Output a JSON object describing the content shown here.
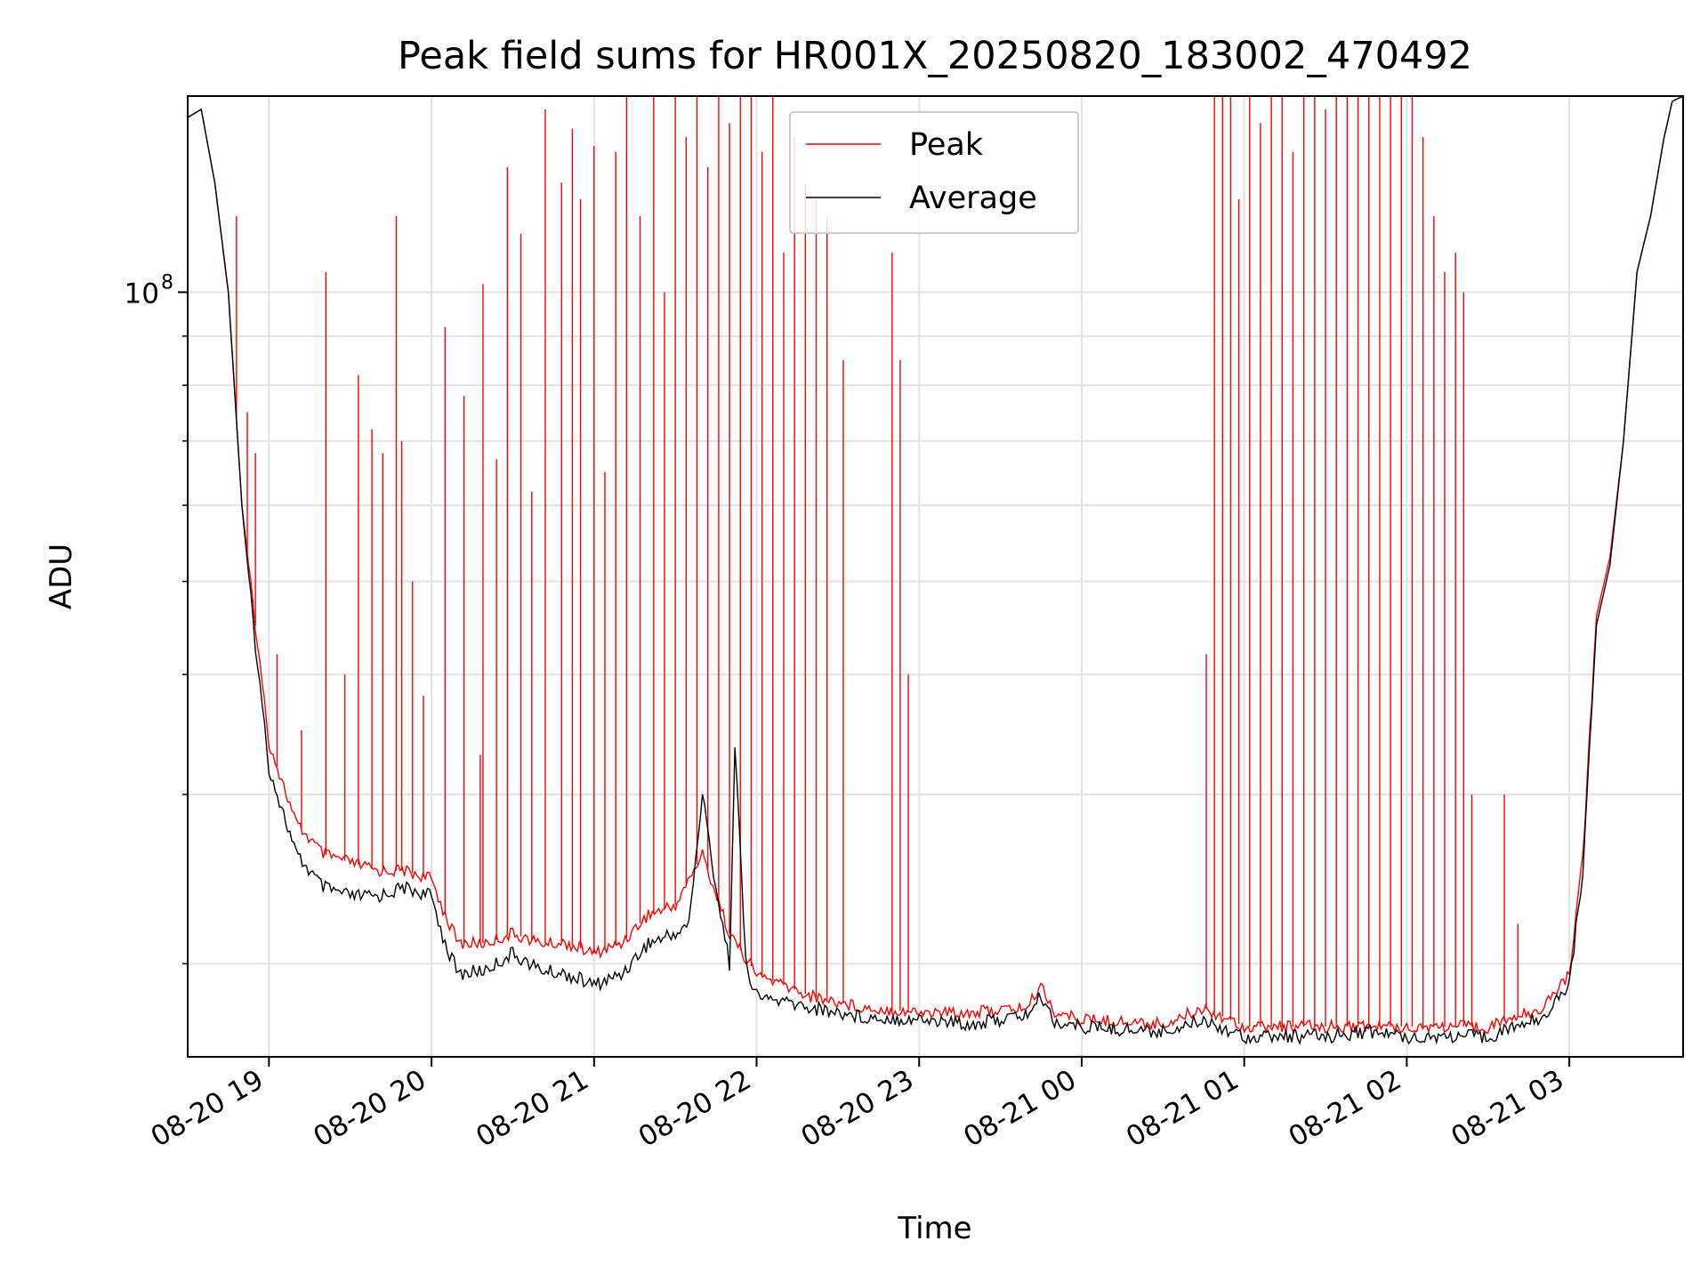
{
  "chart_data": {
    "type": "line",
    "title": "Peak field sums for HR001X_20250820_183002_470492",
    "xlabel": "Time",
    "ylabel": "ADU",
    "yscale": "log",
    "grid": true,
    "legend_position": "top-center",
    "xlim": [
      "2025-08-20T18:30",
      "2025-08-21T03:42"
    ],
    "ylim": [
      16000000,
      160000000
    ],
    "x_ticks": [
      {
        "t": "2025-08-20T19:00",
        "label": "08-20 19"
      },
      {
        "t": "2025-08-20T20:00",
        "label": "08-20 20"
      },
      {
        "t": "2025-08-20T21:00",
        "label": "08-20 21"
      },
      {
        "t": "2025-08-20T22:00",
        "label": "08-20 22"
      },
      {
        "t": "2025-08-20T23:00",
        "label": "08-20 23"
      },
      {
        "t": "2025-08-21T00:00",
        "label": "08-21 00"
      },
      {
        "t": "2025-08-21T01:00",
        "label": "08-21 01"
      },
      {
        "t": "2025-08-21T02:00",
        "label": "08-21 02"
      },
      {
        "t": "2025-08-21T03:00",
        "label": "08-21 03"
      }
    ],
    "y_major_ticks": [
      {
        "value": 100000000,
        "label_base": "10",
        "label_exp": "8"
      }
    ],
    "y_minor_ticks": [
      20000000,
      30000000,
      40000000,
      50000000,
      60000000,
      70000000,
      80000000,
      90000000
    ],
    "series": [
      {
        "name": "Peak",
        "color": "#ff0000",
        "baseline": [
          [
            "2025-08-20T18:30",
            152000000.0
          ],
          [
            "2025-08-20T18:35",
            155000000.0
          ],
          [
            "2025-08-20T18:40",
            130000000.0
          ],
          [
            "2025-08-20T18:45",
            100000000.0
          ],
          [
            "2025-08-20T18:50",
            60000000.0
          ],
          [
            "2025-08-20T18:55",
            45000000.0
          ],
          [
            "2025-08-20T19:00",
            34000000.0
          ],
          [
            "2025-08-20T19:10",
            28000000.0
          ],
          [
            "2025-08-20T19:20",
            26000000.0
          ],
          [
            "2025-08-20T19:30",
            25500000.0
          ],
          [
            "2025-08-20T19:40",
            25000000.0
          ],
          [
            "2025-08-20T19:50",
            25000000.0
          ],
          [
            "2025-08-20T20:00",
            24500000.0
          ],
          [
            "2025-08-20T20:05",
            22500000.0
          ],
          [
            "2025-08-20T20:10",
            21000000.0
          ],
          [
            "2025-08-20T20:20",
            21000000.0
          ],
          [
            "2025-08-20T20:30",
            21500000.0
          ],
          [
            "2025-08-20T20:40",
            21000000.0
          ],
          [
            "2025-08-20T20:50",
            21000000.0
          ],
          [
            "2025-08-20T21:00",
            20500000.0
          ],
          [
            "2025-08-20T21:10",
            21000000.0
          ],
          [
            "2025-08-20T21:20",
            22500000.0
          ],
          [
            "2025-08-20T21:30",
            23000000.0
          ],
          [
            "2025-08-20T21:40",
            26000000.0
          ],
          [
            "2025-08-20T21:50",
            21500000.0
          ],
          [
            "2025-08-20T22:00",
            19500000.0
          ],
          [
            "2025-08-20T22:20",
            18500000.0
          ],
          [
            "2025-08-20T22:40",
            18000000.0
          ],
          [
            "2025-08-20T23:00",
            17800000.0
          ],
          [
            "2025-08-20T23:20",
            17800000.0
          ],
          [
            "2025-08-20T23:40",
            18000000.0
          ],
          [
            "2025-08-20T23:45",
            19000000.0
          ],
          [
            "2025-08-20T23:50",
            17800000.0
          ],
          [
            "2025-08-21T00:00",
            17500000.0
          ],
          [
            "2025-08-21T00:30",
            17300000.0
          ],
          [
            "2025-08-21T00:45",
            18000000.0
          ],
          [
            "2025-08-21T01:00",
            17200000.0
          ],
          [
            "2025-08-21T01:30",
            17200000.0
          ],
          [
            "2025-08-21T02:00",
            17200000.0
          ],
          [
            "2025-08-21T02:30",
            17200000.0
          ],
          [
            "2025-08-21T02:50",
            18000000.0
          ],
          [
            "2025-08-21T03:00",
            19500000.0
          ],
          [
            "2025-08-21T03:05",
            26000000.0
          ],
          [
            "2025-08-21T03:10",
            46000000.0
          ],
          [
            "2025-08-21T03:15",
            53000000.0
          ],
          [
            "2025-08-21T03:20",
            70000000.0
          ],
          [
            "2025-08-21T03:25",
            105000000.0
          ],
          [
            "2025-08-21T03:30",
            120000000.0
          ],
          [
            "2025-08-21T03:35",
            145000000.0
          ],
          [
            "2025-08-21T03:38",
            158000000.0
          ],
          [
            "2025-08-21T03:42",
            160000000.0
          ]
        ],
        "spikes": [
          [
            "2025-08-20T18:48",
            120000000.0
          ],
          [
            "2025-08-20T18:52",
            75000000.0
          ],
          [
            "2025-08-20T18:55",
            68000000.0
          ],
          [
            "2025-08-20T19:03",
            42000000.0
          ],
          [
            "2025-08-20T19:12",
            35000000.0
          ],
          [
            "2025-08-20T19:21",
            105000000.0
          ],
          [
            "2025-08-20T19:28",
            40000000.0
          ],
          [
            "2025-08-20T19:33",
            82000000.0
          ],
          [
            "2025-08-20T19:38",
            72000000.0
          ],
          [
            "2025-08-20T19:42",
            68000000.0
          ],
          [
            "2025-08-20T19:47",
            120000000.0
          ],
          [
            "2025-08-20T19:49",
            70000000.0
          ],
          [
            "2025-08-20T19:53",
            50000000.0
          ],
          [
            "2025-08-20T19:57",
            38000000.0
          ],
          [
            "2025-08-20T20:05",
            92000000.0
          ],
          [
            "2025-08-20T20:12",
            78000000.0
          ],
          [
            "2025-08-20T20:18",
            33000000.0
          ],
          [
            "2025-08-20T20:19",
            102000000.0
          ],
          [
            "2025-08-20T20:24",
            67000000.0
          ],
          [
            "2025-08-20T20:28",
            135000000.0
          ],
          [
            "2025-08-20T20:33",
            115000000.0
          ],
          [
            "2025-08-20T20:37",
            62000000.0
          ],
          [
            "2025-08-20T20:42",
            155000000.0
          ],
          [
            "2025-08-20T20:48",
            130000000.0
          ],
          [
            "2025-08-20T20:52",
            148000000.0
          ],
          [
            "2025-08-20T20:55",
            125000000.0
          ],
          [
            "2025-08-20T21:00",
            142000000.0
          ],
          [
            "2025-08-20T21:04",
            65000000.0
          ],
          [
            "2025-08-20T21:08",
            140000000.0
          ],
          [
            "2025-08-20T21:12",
            162000000.0
          ],
          [
            "2025-08-20T21:17",
            120000000.0
          ],
          [
            "2025-08-20T21:22",
            162000000.0
          ],
          [
            "2025-08-20T21:26",
            100000000.0
          ],
          [
            "2025-08-20T21:30",
            162000000.0
          ],
          [
            "2025-08-20T21:34",
            145000000.0
          ],
          [
            "2025-08-20T21:38",
            162000000.0
          ],
          [
            "2025-08-20T21:42",
            135000000.0
          ],
          [
            "2025-08-20T21:46",
            162000000.0
          ],
          [
            "2025-08-20T21:50",
            150000000.0
          ],
          [
            "2025-08-20T21:54",
            162000000.0
          ],
          [
            "2025-08-20T21:58",
            162000000.0
          ],
          [
            "2025-08-20T22:02",
            140000000.0
          ],
          [
            "2025-08-20T22:06",
            162000000.0
          ],
          [
            "2025-08-20T22:10",
            110000000.0
          ],
          [
            "2025-08-20T22:14",
            145000000.0
          ],
          [
            "2025-08-20T22:18",
            130000000.0
          ],
          [
            "2025-08-20T22:22",
            125000000.0
          ],
          [
            "2025-08-20T22:26",
            120000000.0
          ],
          [
            "2025-08-20T22:32",
            85000000.0
          ],
          [
            "2025-08-20T22:50",
            110000000.0
          ],
          [
            "2025-08-20T22:53",
            85000000.0
          ],
          [
            "2025-08-20T22:56",
            40000000.0
          ],
          [
            "2025-08-21T00:46",
            42000000.0
          ],
          [
            "2025-08-21T00:49",
            162000000.0
          ],
          [
            "2025-08-21T00:52",
            162000000.0
          ],
          [
            "2025-08-21T00:55",
            162000000.0
          ],
          [
            "2025-08-21T00:58",
            125000000.0
          ],
          [
            "2025-08-21T01:02",
            162000000.0
          ],
          [
            "2025-08-21T01:06",
            150000000.0
          ],
          [
            "2025-08-21T01:10",
            162000000.0
          ],
          [
            "2025-08-21T01:14",
            162000000.0
          ],
          [
            "2025-08-21T01:18",
            140000000.0
          ],
          [
            "2025-08-21T01:22",
            162000000.0
          ],
          [
            "2025-08-21T01:26",
            162000000.0
          ],
          [
            "2025-08-21T01:30",
            155000000.0
          ],
          [
            "2025-08-21T01:34",
            162000000.0
          ],
          [
            "2025-08-21T01:38",
            162000000.0
          ],
          [
            "2025-08-21T01:42",
            162000000.0
          ],
          [
            "2025-08-21T01:46",
            162000000.0
          ],
          [
            "2025-08-21T01:50",
            162000000.0
          ],
          [
            "2025-08-21T01:54",
            162000000.0
          ],
          [
            "2025-08-21T01:58",
            162000000.0
          ],
          [
            "2025-08-21T02:02",
            162000000.0
          ],
          [
            "2025-08-21T02:06",
            145000000.0
          ],
          [
            "2025-08-21T02:10",
            120000000.0
          ],
          [
            "2025-08-21T02:14",
            105000000.0
          ],
          [
            "2025-08-21T02:18",
            110000000.0
          ],
          [
            "2025-08-21T02:21",
            100000000.0
          ],
          [
            "2025-08-21T02:24",
            30000000.0
          ],
          [
            "2025-08-21T02:36",
            30000000.0
          ],
          [
            "2025-08-21T02:41",
            22000000.0
          ]
        ]
      },
      {
        "name": "Average",
        "color": "#000000",
        "baseline": [
          [
            "2025-08-20T18:30",
            152000000.0
          ],
          [
            "2025-08-20T18:35",
            155000000.0
          ],
          [
            "2025-08-20T18:40",
            130000000.0
          ],
          [
            "2025-08-20T18:45",
            100000000.0
          ],
          [
            "2025-08-20T18:50",
            60000000.0
          ],
          [
            "2025-08-20T18:55",
            43000000.0
          ],
          [
            "2025-08-20T19:00",
            32000000.0
          ],
          [
            "2025-08-20T19:10",
            26000000.0
          ],
          [
            "2025-08-20T19:20",
            24000000.0
          ],
          [
            "2025-08-20T19:30",
            23500000.0
          ],
          [
            "2025-08-20T19:40",
            23500000.0
          ],
          [
            "2025-08-20T19:50",
            24000000.0
          ],
          [
            "2025-08-20T20:00",
            23500000.0
          ],
          [
            "2025-08-20T20:05",
            21000000.0
          ],
          [
            "2025-08-20T20:10",
            19500000.0
          ],
          [
            "2025-08-20T20:20",
            19700000.0
          ],
          [
            "2025-08-20T20:30",
            20500000.0
          ],
          [
            "2025-08-20T20:40",
            19700000.0
          ],
          [
            "2025-08-20T20:50",
            19500000.0
          ],
          [
            "2025-08-20T21:00",
            19000000.0
          ],
          [
            "2025-08-20T21:10",
            19500000.0
          ],
          [
            "2025-08-20T21:20",
            21000000.0
          ],
          [
            "2025-08-20T21:30",
            21500000.0
          ],
          [
            "2025-08-20T21:35",
            22000000.0
          ],
          [
            "2025-08-20T21:40",
            30000000.0
          ],
          [
            "2025-08-20T21:45",
            24000000.0
          ],
          [
            "2025-08-20T21:50",
            20000000.0
          ],
          [
            "2025-08-20T21:52",
            34000000.0
          ],
          [
            "2025-08-20T21:56",
            20000000.0
          ],
          [
            "2025-08-20T22:00",
            18500000.0
          ],
          [
            "2025-08-20T22:20",
            18000000.0
          ],
          [
            "2025-08-20T22:40",
            17600000.0
          ],
          [
            "2025-08-20T23:00",
            17500000.0
          ],
          [
            "2025-08-20T23:20",
            17300000.0
          ],
          [
            "2025-08-20T23:40",
            17700000.0
          ],
          [
            "2025-08-20T23:45",
            18500000.0
          ],
          [
            "2025-08-20T23:50",
            17400000.0
          ],
          [
            "2025-08-21T00:00",
            17200000.0
          ],
          [
            "2025-08-21T00:30",
            17000000.0
          ],
          [
            "2025-08-21T00:45",
            17500000.0
          ],
          [
            "2025-08-21T01:00",
            16800000.0
          ],
          [
            "2025-08-21T01:30",
            16800000.0
          ],
          [
            "2025-08-21T01:45",
            17000000.0
          ],
          [
            "2025-08-21T02:00",
            16800000.0
          ],
          [
            "2025-08-21T02:30",
            16800000.0
          ],
          [
            "2025-08-21T02:50",
            17600000.0
          ],
          [
            "2025-08-21T03:00",
            19000000.0
          ],
          [
            "2025-08-21T03:05",
            25000000.0
          ],
          [
            "2025-08-21T03:10",
            45000000.0
          ],
          [
            "2025-08-21T03:15",
            52000000.0
          ],
          [
            "2025-08-21T03:20",
            70000000.0
          ],
          [
            "2025-08-21T03:25",
            105000000.0
          ],
          [
            "2025-08-21T03:30",
            120000000.0
          ],
          [
            "2025-08-21T03:35",
            145000000.0
          ],
          [
            "2025-08-21T03:38",
            158000000.0
          ],
          [
            "2025-08-21T03:42",
            160000000.0
          ]
        ]
      }
    ]
  }
}
